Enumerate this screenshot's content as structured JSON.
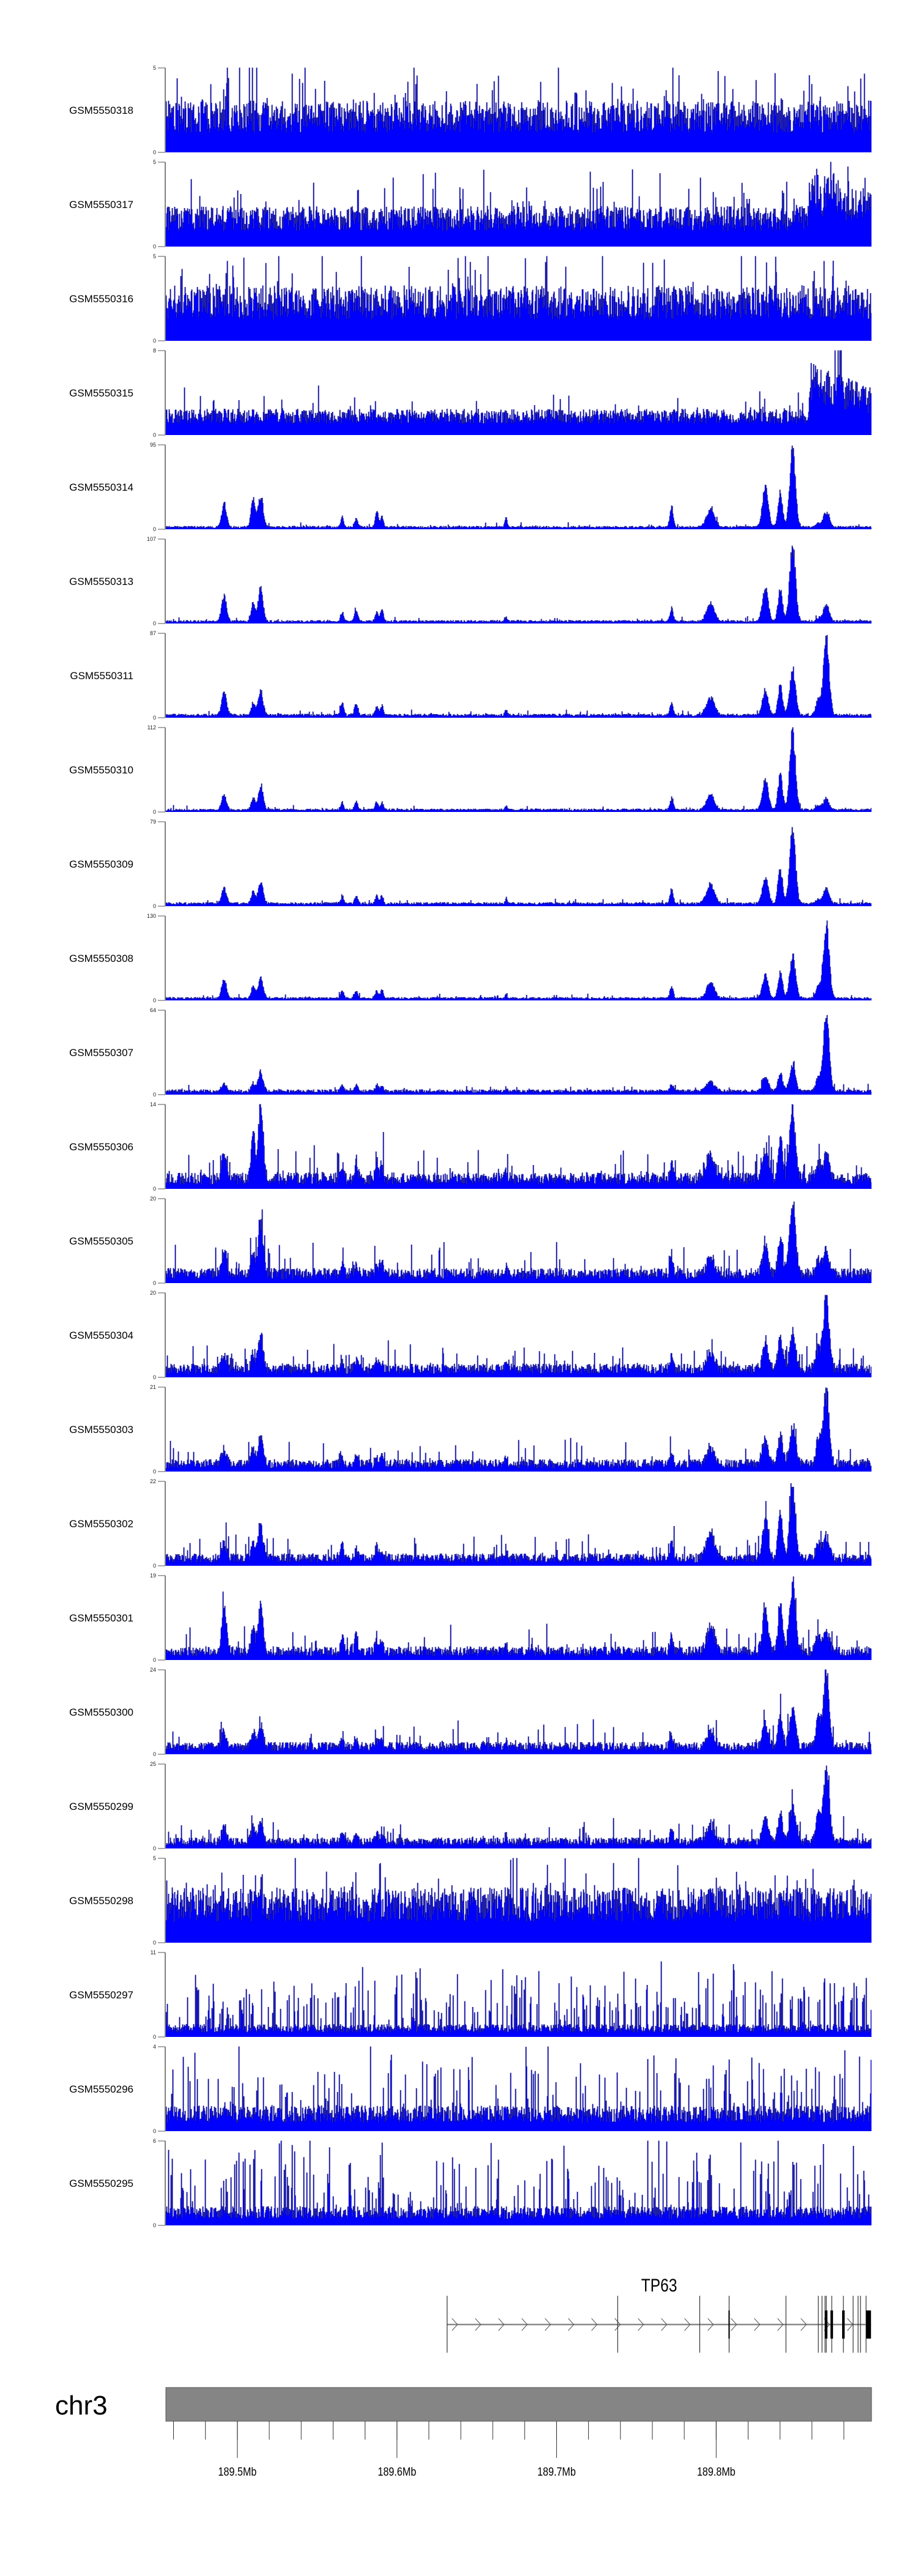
{
  "chart_data": {
    "type": "area",
    "title": "",
    "chromosome": "chr3",
    "xlim_mb": [
      189.4552,
      189.8973
    ],
    "axis_ticks_minor_step_mb": 0.02,
    "axis_tick_labels": [
      {
        "mb": 189.5,
        "label": "189.5Mb"
      },
      {
        "mb": 189.6,
        "label": "189.6Mb"
      },
      {
        "mb": 189.7,
        "label": "189.7Mb"
      },
      {
        "mb": 189.8,
        "label": "189.8Mb"
      }
    ],
    "colors": {
      "fill": "#0000ff",
      "outline": "#00008b",
      "axis": "#808080",
      "ideogram": "#858585"
    },
    "peak_positions_mb": [
      189.4915,
      189.5097,
      189.5144,
      189.5655,
      189.5743,
      189.5872,
      189.5904,
      189.6682,
      189.7719,
      189.7963,
      189.8306,
      189.84,
      189.8477,
      189.8638,
      189.8688
    ],
    "peak_widths_kb": [
      1.5,
      1.2,
      1.5,
      0.9,
      1.0,
      1.0,
      0.9,
      0.7,
      1.0,
      2.5,
      1.8,
      1.4,
      1.8,
      1.5,
      1.8
    ],
    "tracks": [
      {
        "name": "GSM5550318",
        "ymin": 0,
        "ymax": 5,
        "bg": 0.42,
        "jitter": 0.9,
        "spike": 0.1,
        "gain": 1.7,
        "peaks": []
      },
      {
        "name": "GSM5550317",
        "ymin": 0,
        "ymax": 5,
        "bg": 0.33,
        "jitter": 0.9,
        "spike": 0.08,
        "gain": 1.7,
        "peaks": [],
        "broad": [
          189.8579,
          189.8973,
          0.7
        ]
      },
      {
        "name": "GSM5550316",
        "ymin": 0,
        "ymax": 5,
        "bg": 0.45,
        "jitter": 0.9,
        "spike": 0.1,
        "gain": 1.6,
        "peaks": []
      },
      {
        "name": "GSM5550315",
        "ymin": 0,
        "ymax": 8,
        "bg": 0.22,
        "jitter": 0.8,
        "spike": 0.08,
        "gain": 1.6,
        "peaks": [],
        "broad": [
          189.8579,
          189.8973,
          0.62
        ]
      },
      {
        "name": "GSM5550314",
        "ymin": 0,
        "ymax": 95,
        "bg": 0.025,
        "jitter": 1,
        "spike": 0.05,
        "gain": 2,
        "peaks": [
          0.3,
          0.4,
          0.43,
          0.13,
          0.12,
          0.2,
          0.15,
          0.14,
          0.26,
          0.23,
          0.52,
          0.45,
          1.0,
          0.05,
          0.2
        ]
      },
      {
        "name": "GSM5550313",
        "ymin": 0,
        "ymax": 107,
        "bg": 0.025,
        "jitter": 1,
        "spike": 0.05,
        "gain": 2,
        "peaks": [
          0.33,
          0.24,
          0.43,
          0.12,
          0.15,
          0.13,
          0.16,
          0.05,
          0.17,
          0.22,
          0.44,
          0.4,
          1.0,
          0.05,
          0.22
        ]
      },
      {
        "name": "GSM5550311",
        "ymin": 0,
        "ymax": 87,
        "bg": 0.03,
        "jitter": 1,
        "spike": 0.05,
        "gain": 2,
        "peaks": [
          0.31,
          0.16,
          0.32,
          0.16,
          0.17,
          0.12,
          0.12,
          0.06,
          0.16,
          0.23,
          0.32,
          0.38,
          0.6,
          0.2,
          1.0
        ]
      },
      {
        "name": "GSM5550310",
        "ymin": 0,
        "ymax": 112,
        "bg": 0.025,
        "jitter": 1,
        "spike": 0.05,
        "gain": 2,
        "peaks": [
          0.2,
          0.15,
          0.33,
          0.1,
          0.1,
          0.1,
          0.1,
          0.05,
          0.15,
          0.2,
          0.4,
          0.45,
          1.0,
          0.05,
          0.15
        ]
      },
      {
        "name": "GSM5550309",
        "ymin": 0,
        "ymax": 79,
        "bg": 0.03,
        "jitter": 1,
        "spike": 0.05,
        "gain": 2,
        "peaks": [
          0.2,
          0.15,
          0.3,
          0.1,
          0.1,
          0.1,
          0.1,
          0.05,
          0.18,
          0.25,
          0.35,
          0.45,
          1.0,
          0.05,
          0.2
        ]
      },
      {
        "name": "GSM5550308",
        "ymin": 0,
        "ymax": 130,
        "bg": 0.025,
        "jitter": 1,
        "spike": 0.05,
        "gain": 2,
        "peaks": [
          0.25,
          0.15,
          0.27,
          0.1,
          0.1,
          0.1,
          0.1,
          0.05,
          0.15,
          0.2,
          0.3,
          0.35,
          0.55,
          0.15,
          1.0
        ]
      },
      {
        "name": "GSM5550307",
        "ymin": 0,
        "ymax": 64,
        "bg": 0.04,
        "jitter": 1,
        "spike": 0.05,
        "gain": 2,
        "peaks": [
          0.1,
          0.1,
          0.25,
          0.08,
          0.08,
          0.08,
          0.08,
          0.04,
          0.08,
          0.12,
          0.2,
          0.25,
          0.35,
          0.2,
          1.0
        ]
      },
      {
        "name": "GSM5550306",
        "ymin": 0,
        "ymax": 14,
        "bg": 0.12,
        "jitter": 1.2,
        "spike": 0.08,
        "gain": 2.5,
        "peaks": [
          0.3,
          0.6,
          1.0,
          0.2,
          0.2,
          0.2,
          0.2,
          0.1,
          0.2,
          0.3,
          0.4,
          0.5,
          0.95,
          0.2,
          0.3
        ]
      },
      {
        "name": "GSM5550305",
        "ymin": 0,
        "ymax": 20,
        "bg": 0.11,
        "jitter": 1.2,
        "spike": 0.07,
        "gain": 2.5,
        "peaks": [
          0.3,
          0.3,
          0.7,
          0.2,
          0.15,
          0.15,
          0.15,
          0.1,
          0.2,
          0.2,
          0.4,
          0.5,
          1.0,
          0.2,
          0.3
        ]
      },
      {
        "name": "GSM5550304",
        "ymin": 0,
        "ymax": 20,
        "bg": 0.1,
        "jitter": 1.2,
        "spike": 0.07,
        "gain": 2.5,
        "peaks": [
          0.2,
          0.2,
          0.45,
          0.1,
          0.1,
          0.1,
          0.1,
          0.1,
          0.2,
          0.2,
          0.35,
          0.4,
          0.5,
          0.3,
          0.95
        ]
      },
      {
        "name": "GSM5550303",
        "ymin": 0,
        "ymax": 21,
        "bg": 0.09,
        "jitter": 1.2,
        "spike": 0.07,
        "gain": 2.5,
        "peaks": [
          0.2,
          0.2,
          0.4,
          0.1,
          0.1,
          0.1,
          0.1,
          0.1,
          0.15,
          0.2,
          0.35,
          0.4,
          0.5,
          0.3,
          0.95
        ]
      },
      {
        "name": "GSM5550302",
        "ymin": 0,
        "ymax": 22,
        "bg": 0.09,
        "jitter": 1.2,
        "spike": 0.07,
        "gain": 2.5,
        "peaks": [
          0.2,
          0.2,
          0.45,
          0.15,
          0.1,
          0.15,
          0.1,
          0.1,
          0.2,
          0.35,
          0.5,
          0.6,
          0.95,
          0.2,
          0.3
        ]
      },
      {
        "name": "GSM5550301",
        "ymin": 0,
        "ymax": 19,
        "bg": 0.1,
        "jitter": 1.2,
        "spike": 0.07,
        "gain": 2.5,
        "peaks": [
          0.6,
          0.3,
          0.6,
          0.2,
          0.2,
          0.2,
          0.2,
          0.1,
          0.2,
          0.3,
          0.5,
          0.6,
          0.9,
          0.2,
          0.3
        ]
      },
      {
        "name": "GSM5550300",
        "ymin": 0,
        "ymax": 24,
        "bg": 0.09,
        "jitter": 1.2,
        "spike": 0.07,
        "gain": 2.5,
        "peaks": [
          0.2,
          0.2,
          0.3,
          0.1,
          0.1,
          0.1,
          0.1,
          0.1,
          0.15,
          0.2,
          0.35,
          0.4,
          0.5,
          0.4,
          1.0
        ]
      },
      {
        "name": "GSM5550299",
        "ymin": 0,
        "ymax": 25,
        "bg": 0.08,
        "jitter": 1.2,
        "spike": 0.07,
        "gain": 2.5,
        "peaks": [
          0.2,
          0.2,
          0.3,
          0.1,
          0.1,
          0.1,
          0.1,
          0.1,
          0.15,
          0.2,
          0.3,
          0.35,
          0.45,
          0.4,
          1.0
        ]
      },
      {
        "name": "GSM5550298",
        "ymin": 0,
        "ymax": 5,
        "bg": 0.45,
        "jitter": 0.9,
        "spike": 0.1,
        "gain": 1.6,
        "peaks": []
      },
      {
        "name": "GSM5550297",
        "ymin": 0,
        "ymax": 11,
        "bg": 0.1,
        "jitter": 1.0,
        "spike": 0.2,
        "gain": 5,
        "peaks": []
      },
      {
        "name": "GSM5550296",
        "ymin": 0,
        "ymax": 4,
        "bg": 0.2,
        "jitter": 1.0,
        "spike": 0.15,
        "gain": 3,
        "peaks": []
      },
      {
        "name": "GSM5550295",
        "ymin": 0,
        "ymax": 6,
        "bg": 0.15,
        "jitter": 1.0,
        "spike": 0.15,
        "gain": 4,
        "peaks": []
      }
    ],
    "gene": {
      "name": "TP63",
      "strand": "+",
      "start_mb": 189.6314,
      "end_mb": 189.897,
      "exon_lines_mb": [
        189.6314,
        189.7383,
        189.7897,
        189.8081,
        189.8437,
        189.864,
        189.8663,
        189.8682,
        189.869,
        189.8724,
        189.8797,
        189.8858,
        189.8889,
        189.8904,
        189.8939
      ],
      "coding_blocks_mb": [
        [
          189.8077,
          189.8085
        ],
        [
          189.868,
          189.8697
        ],
        [
          189.8716,
          189.8732
        ],
        [
          189.8789,
          189.8805
        ],
        [
          189.8939,
          189.897
        ]
      ]
    }
  }
}
